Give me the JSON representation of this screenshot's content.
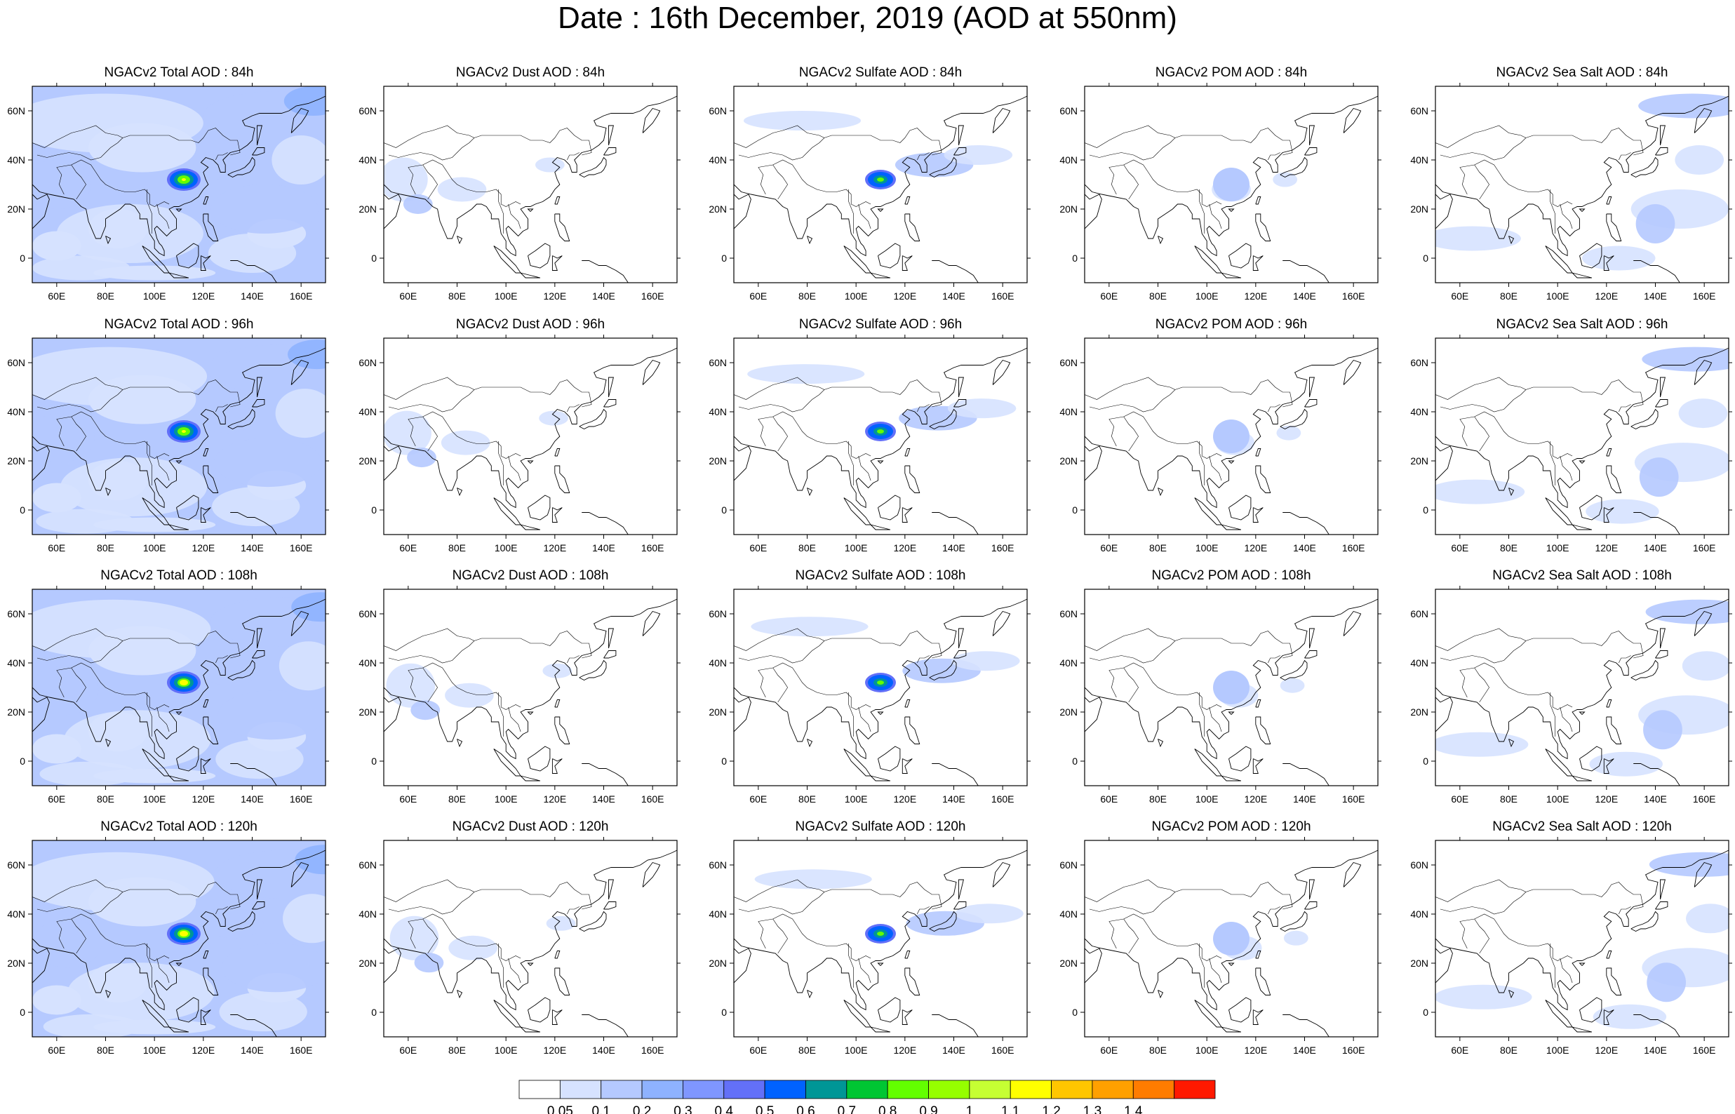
{
  "title": "Date : 16th December, 2019 (AOD at 550nm)",
  "grid": {
    "columns": [
      "Total",
      "Dust",
      "Sulfate",
      "POM",
      "Sea Salt"
    ],
    "rows": [
      "84h",
      "96h",
      "108h",
      "120h"
    ],
    "panels": [
      [
        "NGACv2 Total AOD : 84h",
        "NGACv2 Dust AOD : 84h",
        "NGACv2 Sulfate AOD : 84h",
        "NGACv2 POM AOD : 84h",
        "NGACv2 Sea Salt AOD : 84h"
      ],
      [
        "NGACv2 Total AOD : 96h",
        "NGACv2 Dust AOD : 96h",
        "NGACv2 Sulfate AOD : 96h",
        "NGACv2 POM AOD : 96h",
        "NGACv2 Sea Salt AOD : 96h"
      ],
      [
        "NGACv2 Total AOD : 108h",
        "NGACv2 Dust AOD : 108h",
        "NGACv2 Sulfate AOD : 108h",
        "NGACv2 POM AOD : 108h",
        "NGACv2 Sea Salt AOD : 108h"
      ],
      [
        "NGACv2 Total AOD : 120h",
        "NGACv2 Dust AOD : 120h",
        "NGACv2 Sulfate AOD : 120h",
        "NGACv2 POM AOD : 120h",
        "NGACv2 Sea Salt  AOD : 120h"
      ]
    ]
  },
  "map": {
    "lon_range": [
      50,
      170
    ],
    "lat_range": [
      -10,
      70
    ],
    "x_ticks": [
      "60E",
      "80E",
      "100E",
      "120E",
      "140E",
      "160E"
    ],
    "x_tick_values": [
      60,
      80,
      100,
      120,
      140,
      160
    ],
    "y_ticks": [
      "60N",
      "40N",
      "20N",
      "0"
    ],
    "y_tick_values": [
      60,
      40,
      20,
      0
    ]
  },
  "colorbar": {
    "labels": [
      "0.05",
      "0.1",
      "0.2",
      "0.3",
      "0.4",
      "0.5",
      "0.6",
      "0.7",
      "0.8",
      "0.9",
      "1",
      "1.1",
      "1.2",
      "1.3",
      "1.4"
    ],
    "colors": [
      "#ffffff",
      "#d6e2ff",
      "#b5c9ff",
      "#8eb2ff",
      "#7f96ff",
      "#6370f8",
      "#0062ff",
      "#009696",
      "#00c633",
      "#63ff00",
      "#96ff00",
      "#c6ff33",
      "#ffff00",
      "#ffc600",
      "#ffa000",
      "#ff7c00",
      "#ff1900"
    ]
  }
}
